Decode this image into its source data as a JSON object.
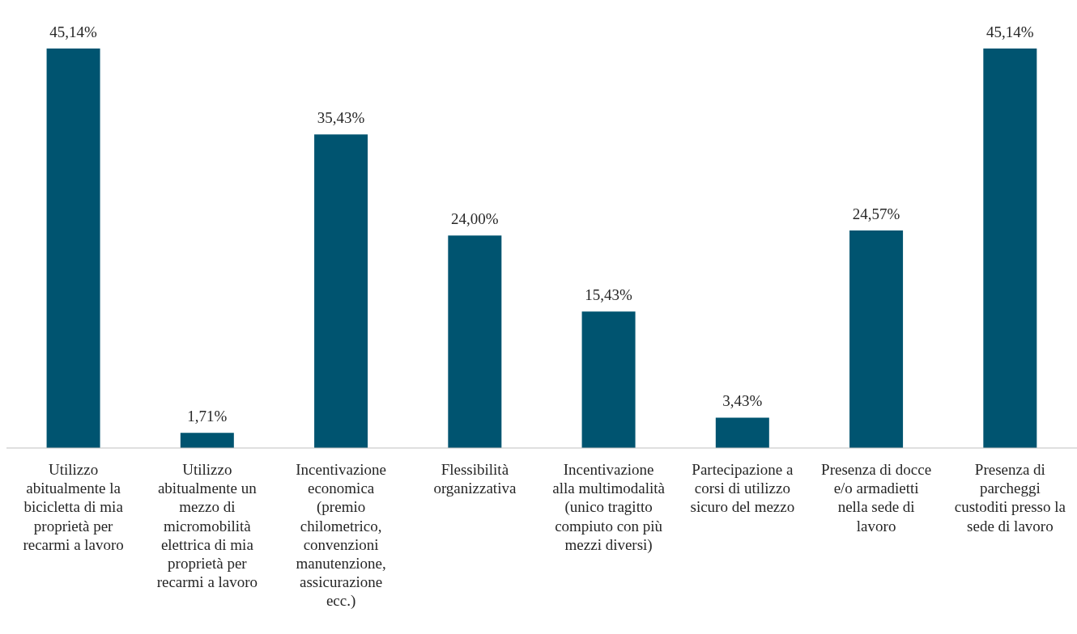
{
  "chart_data": {
    "type": "bar",
    "categories": [
      "Utilizzo abitualmente la bicicletta di mia proprietà per recarmi a lavoro",
      "Utilizzo abitualmente un mezzo di micromobilità elettrica di mia proprietà per recarmi a lavoro",
      "Incentivazione economica (premio chilometrico, convenzioni manutenzione, assicurazione ecc.)",
      "Flessibilità organizzativa",
      "Incentivazione alla multimodalità (unico tragitto compiuto con più mezzi diversi)",
      "Partecipazione a corsi di utilizzo sicuro del mezzo",
      "Presenza di docce e/o armadietti nella sede di lavoro",
      "Presenza di parcheggi custoditi presso la sede di lavoro"
    ],
    "values": [
      45.14,
      1.71,
      35.43,
      24.0,
      15.43,
      3.43,
      24.57,
      45.14
    ],
    "value_labels": [
      "45,14%",
      "1,71%",
      "35,43%",
      "24,00%",
      "15,43%",
      "3,43%",
      "24,57%",
      "45,14%"
    ],
    "color": "#005470"
  }
}
